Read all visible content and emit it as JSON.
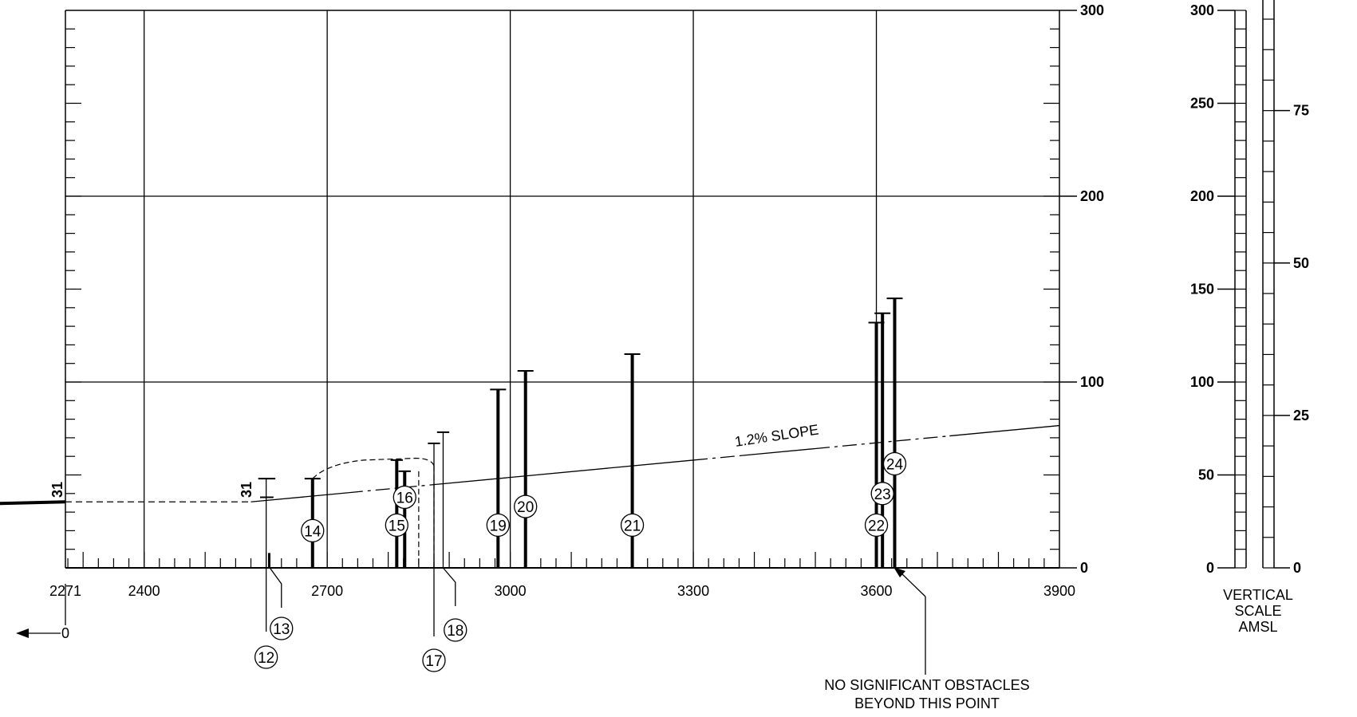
{
  "chart_data": {
    "type": "diagram",
    "x_axis": {
      "ticks": [
        2271,
        2400,
        2700,
        3000,
        3300,
        3600,
        3900
      ],
      "labels": [
        "2271",
        "2400",
        "2700",
        "3000",
        "3300",
        "3600",
        "3900"
      ],
      "range": [
        2271,
        3900
      ]
    },
    "y_axis": {
      "ticks": [
        0,
        100,
        200,
        300
      ],
      "labels": [
        "0",
        "100",
        "200",
        "300"
      ],
      "range": [
        0,
        300
      ]
    },
    "threshold_labels": [
      "31",
      "31"
    ],
    "origin_label": "0",
    "slope_label": "1.2% SLOPE",
    "obstacles": [
      {
        "id": "12",
        "x": 2600,
        "height": 5
      },
      {
        "id": "13",
        "x": 2600,
        "height": 38
      },
      {
        "id": "14",
        "x": 2676,
        "height": 48
      },
      {
        "id": "15",
        "x": 2814,
        "height": 58
      },
      {
        "id": "16",
        "x": 2827,
        "height": 52
      },
      {
        "id": "17",
        "x": 2875,
        "height": 67
      },
      {
        "id": "18",
        "x": 2890,
        "height": 73
      },
      {
        "id": "19",
        "x": 2980,
        "height": 96
      },
      {
        "id": "20",
        "x": 3025,
        "height": 106
      },
      {
        "id": "21",
        "x": 3200,
        "height": 115
      },
      {
        "id": "22",
        "x": 3600,
        "height": 132
      },
      {
        "id": "23",
        "x": 3610,
        "height": 137
      },
      {
        "id": "24",
        "x": 3630,
        "height": 145
      }
    ],
    "note": [
      "NO SIGNIFICANT OBSTACLES",
      "BEYOND THIS POINT"
    ],
    "vertical_scale": {
      "feet_labels": [
        "300",
        "250",
        "200",
        "150",
        "100",
        "50",
        "0"
      ],
      "meter_labels": [
        "75",
        "50",
        "25",
        "0"
      ],
      "caption": [
        "VERTICAL",
        "SCALE",
        "AMSL"
      ]
    }
  }
}
